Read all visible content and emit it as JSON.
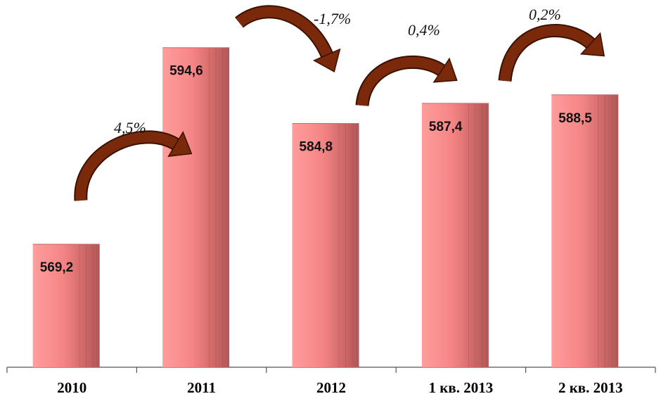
{
  "chart_data": {
    "type": "bar",
    "categories": [
      "2010",
      "2011",
      "2012",
      "1 кв. 2013",
      "2 кв. 2013"
    ],
    "values": [
      569.2,
      594.6,
      584.8,
      587.4,
      588.5
    ],
    "value_labels": [
      "569,2",
      "594,6",
      "584,8",
      "587,4",
      "588,5"
    ],
    "changes": [
      {
        "from": 0,
        "to": 1,
        "label": "4,5%"
      },
      {
        "from": 1,
        "to": 2,
        "label": "-1,7%"
      },
      {
        "from": 2,
        "to": 3,
        "label": "0,4%"
      },
      {
        "from": 3,
        "to": 4,
        "label": "0,2%"
      }
    ],
    "title": "",
    "xlabel": "",
    "ylabel": "",
    "grid": false,
    "legend": "none"
  },
  "colors": {
    "bar_light": "#ff9a9a",
    "bar_mid": "#f07a7a",
    "bar_dark": "#b85a5a",
    "arrow_fill": "#7a2a0a",
    "arrow_stroke": "#3a1000",
    "axis": "#555555"
  }
}
